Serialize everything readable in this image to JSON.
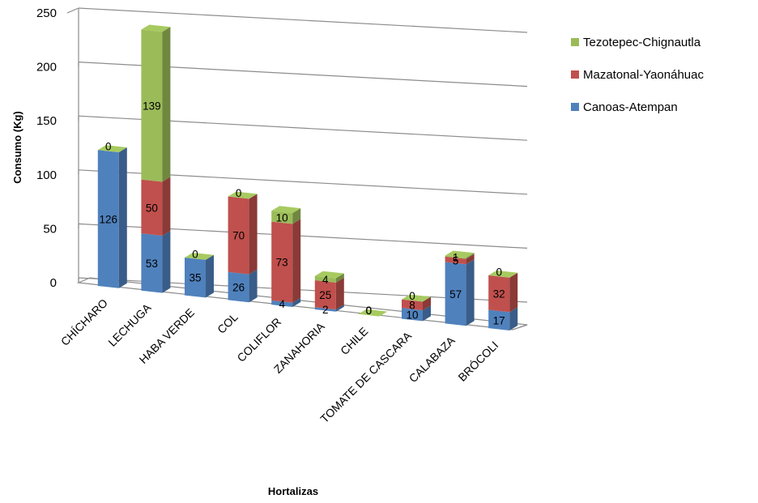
{
  "chart_data": {
    "type": "bar",
    "stacked": true,
    "three_d": true,
    "categories": [
      "CHÍCHARO",
      "LECHUGA",
      "HABA VERDE",
      "COL",
      "COLIFLOR",
      "ZANAHORIA",
      "CHILE",
      "TOMATE DE CASCARA",
      "CALABAZA",
      "BRÓCOLI"
    ],
    "series": [
      {
        "name": "Canoas-Atempan",
        "color": "#4F81BD",
        "values": [
          126,
          53,
          35,
          26,
          4,
          2,
          0,
          10,
          57,
          17
        ]
      },
      {
        "name": "Mazatonal-Yaonáhuac",
        "color": "#C0504D",
        "values": [
          null,
          50,
          null,
          70,
          73,
          25,
          0,
          8,
          5,
          32
        ]
      },
      {
        "name": "Tezotepec-Chignautla",
        "color": "#9BBB59",
        "values": [
          0,
          139,
          0,
          0,
          10,
          4,
          0,
          0,
          1,
          0
        ]
      }
    ],
    "title": "",
    "xlabel": "Hortalizas",
    "ylabel": "Consumo (Kg)",
    "ylim": [
      0,
      250
    ],
    "yticks": [
      0,
      50,
      100,
      150,
      200,
      250
    ],
    "grid": true,
    "legend_position": "right",
    "legend_order": [
      "Tezotepec-Chignautla",
      "Mazatonal-Yaonáhuac",
      "Canoas-Atempan"
    ]
  }
}
